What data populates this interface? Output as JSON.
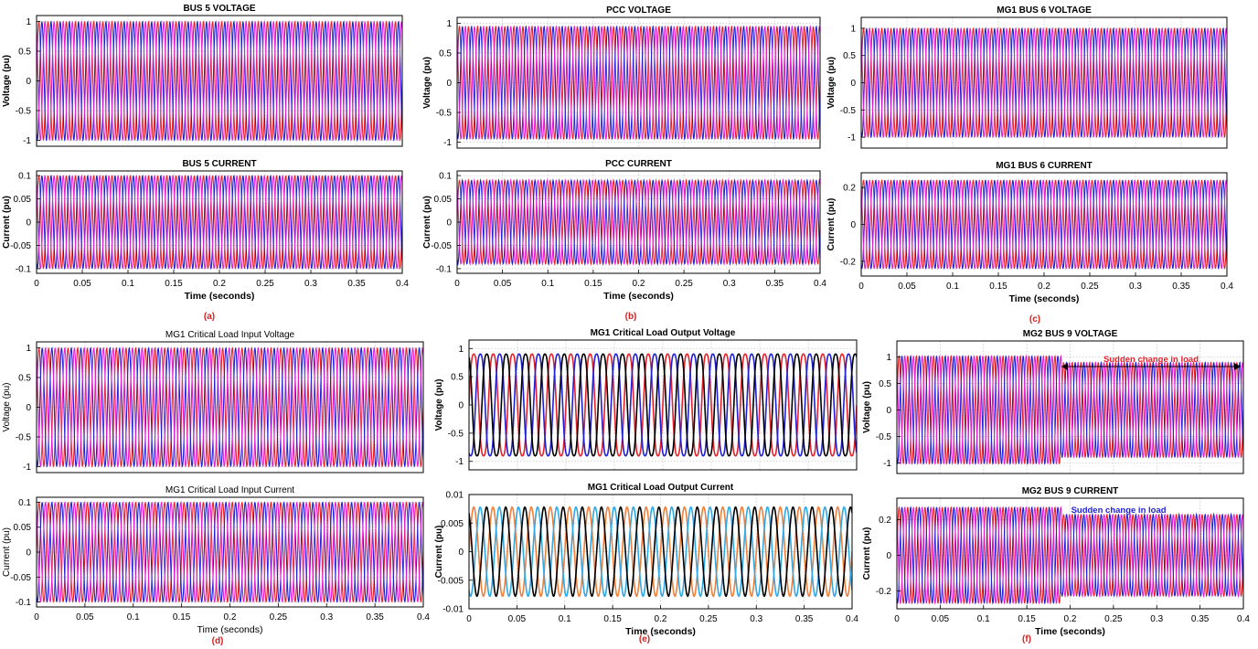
{
  "colors": {
    "phase_a": "#e8202a",
    "phase_b": "#1f1fd6",
    "phase_c": "#e61fd2",
    "phase_d": "#000000",
    "orange": "#f07f3a",
    "cyan": "#2fa8e6",
    "axis": "#000000",
    "grid": "#c8c8c8",
    "caption": "#d62020",
    "annotation_red": "#e8202a",
    "annotation_blue": "#1f1fd6"
  },
  "captions": {
    "a": "(a)",
    "b": "(b)",
    "c": "(c)",
    "d": "(d)",
    "e": "(e)",
    "f": "(f)"
  },
  "chart_data": [
    {
      "id": "bus5v",
      "type": "line",
      "title": "BUS 5 VOLTAGE",
      "xlabel": "",
      "ylabel": "Voltage (pu)",
      "xlim": [
        0,
        0.4
      ],
      "ylim": [
        -1.1,
        1.1
      ],
      "yticks": [
        -1,
        -0.5,
        0,
        0.5,
        1
      ],
      "xticks": [],
      "frequency_hz": 100,
      "series": [
        {
          "amplitude": 1.0,
          "phase_deg": 0,
          "color": "#e8202a"
        },
        {
          "amplitude": 1.0,
          "phase_deg": -120,
          "color": "#1f1fd6"
        },
        {
          "amplitude": 1.0,
          "phase_deg": 120,
          "color": "#e61fd2"
        }
      ]
    },
    {
      "id": "bus5i",
      "type": "line",
      "title": "BUS 5 CURRENT",
      "xlabel": "Time (seconds)",
      "ylabel": "Current (pu)",
      "xlim": [
        0,
        0.4
      ],
      "ylim": [
        -0.11,
        0.11
      ],
      "yticks": [
        -0.1,
        -0.05,
        0,
        0.05,
        0.1
      ],
      "xticks": [
        0,
        0.05,
        0.1,
        0.15,
        0.2,
        0.25,
        0.3,
        0.35,
        0.4
      ],
      "frequency_hz": 100,
      "series": [
        {
          "amplitude": 0.1,
          "phase_deg": 0,
          "color": "#e8202a"
        },
        {
          "amplitude": 0.1,
          "phase_deg": -120,
          "color": "#1f1fd6"
        },
        {
          "amplitude": 0.1,
          "phase_deg": 120,
          "color": "#e61fd2"
        }
      ]
    },
    {
      "id": "pccv",
      "type": "line",
      "title": "PCC VOLTAGE",
      "xlabel": "",
      "ylabel": "Voltage (pu)",
      "xlim": [
        0,
        0.4
      ],
      "ylim": [
        -1.1,
        1.1
      ],
      "yticks": [
        -1,
        -0.5,
        0,
        0.5,
        1
      ],
      "xticks": [],
      "frequency_hz": 100,
      "series": [
        {
          "amplitude": 0.95,
          "phase_deg": 0,
          "color": "#e8202a"
        },
        {
          "amplitude": 0.95,
          "phase_deg": -120,
          "color": "#1f1fd6"
        },
        {
          "amplitude": 0.95,
          "phase_deg": 120,
          "color": "#e61fd2"
        }
      ]
    },
    {
      "id": "pcci",
      "type": "line",
      "title": "PCC CURRENT",
      "xlabel": "Time (seconds)",
      "ylabel": "Current (pu)",
      "xlim": [
        0,
        0.4
      ],
      "ylim": [
        -0.11,
        0.11
      ],
      "yticks": [
        -0.1,
        -0.05,
        0,
        0.05,
        0.1
      ],
      "xticks": [
        0,
        0.05,
        0.1,
        0.15,
        0.2,
        0.25,
        0.3,
        0.35,
        0.4
      ],
      "frequency_hz": 100,
      "series": [
        {
          "amplitude": 0.09,
          "phase_deg": 0,
          "color": "#e8202a"
        },
        {
          "amplitude": 0.09,
          "phase_deg": -120,
          "color": "#1f1fd6"
        },
        {
          "amplitude": 0.09,
          "phase_deg": 120,
          "color": "#e61fd2"
        }
      ]
    },
    {
      "id": "mg1v",
      "type": "line",
      "title": "MG1 BUS 6 VOLTAGE",
      "xlabel": "",
      "ylabel": "Voltage (pu)",
      "xlim": [
        0,
        0.4
      ],
      "ylim": [
        -1.2,
        1.2
      ],
      "yticks": [
        -1,
        -0.5,
        0,
        0.5,
        1
      ],
      "xticks": [],
      "frequency_hz": 100,
      "series": [
        {
          "amplitude": 1.0,
          "phase_deg": 0,
          "color": "#e8202a"
        },
        {
          "amplitude": 1.0,
          "phase_deg": -120,
          "color": "#1f1fd6"
        },
        {
          "amplitude": 1.0,
          "phase_deg": 120,
          "color": "#e61fd2"
        }
      ]
    },
    {
      "id": "mg1i",
      "type": "line",
      "title": "MG1 BUS 6 CURRENT",
      "xlabel": "Time (seconds)",
      "ylabel": "Current (pu)",
      "xlim": [
        0,
        0.4
      ],
      "ylim": [
        -0.28,
        0.28
      ],
      "yticks": [
        -0.2,
        0,
        0.2
      ],
      "xticks": [
        0,
        0.05,
        0.1,
        0.15,
        0.2,
        0.25,
        0.3,
        0.35,
        0.4
      ],
      "frequency_hz": 100,
      "series": [
        {
          "amplitude": 0.24,
          "phase_deg": 0,
          "color": "#e8202a"
        },
        {
          "amplitude": 0.24,
          "phase_deg": -120,
          "color": "#1f1fd6"
        },
        {
          "amplitude": 0.24,
          "phase_deg": 120,
          "color": "#e61fd2"
        }
      ]
    },
    {
      "id": "clinv",
      "type": "line",
      "title": "MG1 Critical Load Input Voltage",
      "xlabel": "",
      "ylabel": "Voltage (pu)",
      "xlim": [
        0,
        0.4
      ],
      "ylim": [
        -1.1,
        1.1
      ],
      "yticks": [
        -1,
        -0.5,
        0,
        0.5,
        1
      ],
      "xticks": [],
      "frequency_hz": 100,
      "series": [
        {
          "amplitude": 1.0,
          "phase_deg": 0,
          "color": "#e8202a"
        },
        {
          "amplitude": 1.0,
          "phase_deg": -120,
          "color": "#1f1fd6"
        },
        {
          "amplitude": 1.0,
          "phase_deg": 120,
          "color": "#e61fd2"
        }
      ]
    },
    {
      "id": "clini",
      "type": "line",
      "title": "MG1 Critical Load Input Current",
      "xlabel": "Time (seconds)",
      "ylabel": "Current (pu)",
      "xlim": [
        0,
        0.4
      ],
      "ylim": [
        -0.11,
        0.11
      ],
      "yticks": [
        -0.1,
        -0.05,
        0,
        0.05,
        0.1
      ],
      "xticks": [
        0,
        0.05,
        0.1,
        0.15,
        0.2,
        0.25,
        0.3,
        0.35,
        0.4
      ],
      "frequency_hz": 100,
      "series": [
        {
          "amplitude": 0.1,
          "phase_deg": 0,
          "color": "#e8202a"
        },
        {
          "amplitude": 0.1,
          "phase_deg": -120,
          "color": "#1f1fd6"
        },
        {
          "amplitude": 0.1,
          "phase_deg": 120,
          "color": "#e61fd2"
        }
      ]
    },
    {
      "id": "cloutv",
      "type": "line",
      "title": "MG1 Critical Load Output  Voltage",
      "xlabel": "",
      "ylabel": "Voltage (pu)",
      "xlim": [
        0,
        0.4
      ],
      "ylim": [
        -1.15,
        1.15
      ],
      "yticks": [
        -1,
        -0.5,
        0,
        0.5,
        1
      ],
      "xticks": [],
      "frequency_hz": 50,
      "series": [
        {
          "amplitude": 1.0,
          "phase_deg": 0,
          "color": "#e8202a"
        },
        {
          "amplitude": 1.0,
          "phase_deg": -120,
          "color": "#1f1fd6"
        },
        {
          "amplitude": 1.0,
          "phase_deg": 120,
          "color": "#000000"
        }
      ]
    },
    {
      "id": "clouti",
      "type": "line",
      "title": "MG1 Critical Load Output  Current",
      "xlabel": "Time (seconds)",
      "ylabel": "Current (pu)",
      "xlim": [
        0,
        0.4
      ],
      "ylim": [
        -0.01,
        0.01
      ],
      "yticks": [
        -0.01,
        -0.005,
        0,
        0.005,
        0.01
      ],
      "xticks": [
        0,
        0.05,
        0.1,
        0.15,
        0.2,
        0.25,
        0.3,
        0.35,
        0.4
      ],
      "frequency_hz": 50,
      "series": [
        {
          "amplitude": 0.0078,
          "phase_deg": 0,
          "color": "#f07f3a"
        },
        {
          "amplitude": 0.0078,
          "phase_deg": -120,
          "color": "#2fa8e6"
        },
        {
          "amplitude": 0.0078,
          "phase_deg": 120,
          "color": "#000000"
        }
      ]
    },
    {
      "id": "mg2v",
      "type": "line",
      "title": "MG2  BUS 9 VOLTAGE",
      "xlabel": "",
      "ylabel": "Voltage (pu)",
      "xlim": [
        0,
        0.4
      ],
      "ylim": [
        -1.2,
        1.3
      ],
      "yticks": [
        -1,
        -0.5,
        0,
        0.5,
        1
      ],
      "xticks": [],
      "frequency_hz": 100,
      "step_time": 0.19,
      "step_ratio": 0.88,
      "annotation": "Sudden change in load",
      "series": [
        {
          "amplitude": 1.02,
          "phase_deg": 0,
          "color": "#e8202a"
        },
        {
          "amplitude": 1.02,
          "phase_deg": -120,
          "color": "#1f1fd6"
        },
        {
          "amplitude": 1.02,
          "phase_deg": 120,
          "color": "#e61fd2"
        }
      ]
    },
    {
      "id": "mg2i",
      "type": "line",
      "title": "MG2  BUS 9 CURRENT",
      "xlabel": "Time (seconds)",
      "ylabel": "Current (pu)",
      "xlim": [
        0,
        0.4
      ],
      "ylim": [
        -0.3,
        0.32
      ],
      "yticks": [
        -0.2,
        0,
        0.2
      ],
      "xticks": [
        0,
        0.05,
        0.1,
        0.15,
        0.2,
        0.25,
        0.3,
        0.35,
        0.4
      ],
      "frequency_hz": 100,
      "step_time": 0.19,
      "step_ratio": 0.85,
      "annotation": "Sudden change in load",
      "series": [
        {
          "amplitude": 0.27,
          "phase_deg": 0,
          "color": "#e8202a"
        },
        {
          "amplitude": 0.27,
          "phase_deg": -120,
          "color": "#1f1fd6"
        },
        {
          "amplitude": 0.27,
          "phase_deg": 120,
          "color": "#e61fd2"
        }
      ]
    }
  ]
}
